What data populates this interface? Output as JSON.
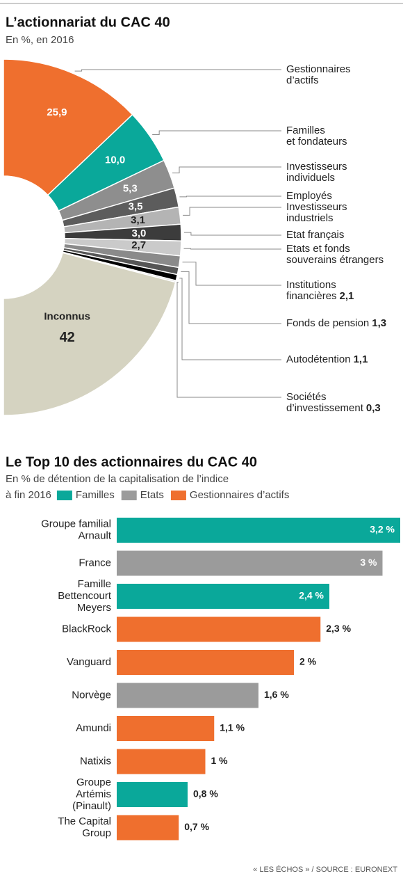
{
  "footer": "« LES ÉCHOS » / SOURCE : EURONEXT",
  "chart_data": [
    {
      "type": "pie",
      "title": "L’actionnariat du CAC 40",
      "subtitle": "En %, en 2016",
      "categories": [
        "Gestionnaires\nd’actifs",
        "Familles\net fondateurs",
        "Investisseurs\nindividuels",
        "Employés",
        "Investisseurs\nindustriels",
        "Etat français",
        "Etats et fonds\nsouverains étrangers",
        "Institutions\nfinancières",
        "Fonds de pension",
        "Autodétention",
        "Sociétés\nd’investissement",
        "Inconnus"
      ],
      "values": [
        25.9,
        10.0,
        5.3,
        3.5,
        3.1,
        3.0,
        2.7,
        2.1,
        1.3,
        1.1,
        0.3,
        42
      ],
      "value_labels": [
        "25,9",
        "10,0",
        "5,3",
        "3,5",
        "3,1",
        "3,0",
        "2,7",
        "2,1",
        "1,3",
        "1,1",
        "0,3",
        "42"
      ],
      "colors": [
        "#ef6f2e",
        "#0aa89a",
        "#8e8e8e",
        "#5c5c5c",
        "#b4b4b4",
        "#3c3c3c",
        "#cacaca",
        "#8a8a8a",
        "#565656",
        "#000000",
        "#dddddd",
        "#d5d3c1"
      ]
    },
    {
      "type": "bar",
      "orientation": "horizontal",
      "title": "Le Top 10 des actionnaires du CAC 40",
      "subtitle": "En % de détention de la capitalisation de l’indice\nà fin 2016",
      "legend": [
        {
          "name": "Familles",
          "color": "#0aa89a"
        },
        {
          "name": "Etats",
          "color": "#9b9b9b"
        },
        {
          "name": "Gestionnaires d’actifs",
          "color": "#ef6f2e"
        }
      ],
      "categories": [
        "Groupe familial\nArnault",
        "France",
        "Famille\nBettencourt\nMeyers",
        "BlackRock",
        "Vanguard",
        "Norvège",
        "Amundi",
        "Natixis",
        "Groupe\nArtémis\n(Pinault)",
        "The Capital\nGroup"
      ],
      "values": [
        3.2,
        3,
        2.4,
        2.3,
        2,
        1.6,
        1.1,
        1,
        0.8,
        0.7
      ],
      "value_labels": [
        "3,2 %",
        "3 %",
        "2,4 %",
        "2,3 %",
        "2 %",
        "1,6 %",
        "1,1 %",
        "1 %",
        "0,8 %",
        "0,7 %"
      ],
      "colors": [
        "#0aa89a",
        "#9b9b9b",
        "#0aa89a",
        "#ef6f2e",
        "#ef6f2e",
        "#9b9b9b",
        "#ef6f2e",
        "#ef6f2e",
        "#0aa89a",
        "#ef6f2e"
      ]
    }
  ]
}
